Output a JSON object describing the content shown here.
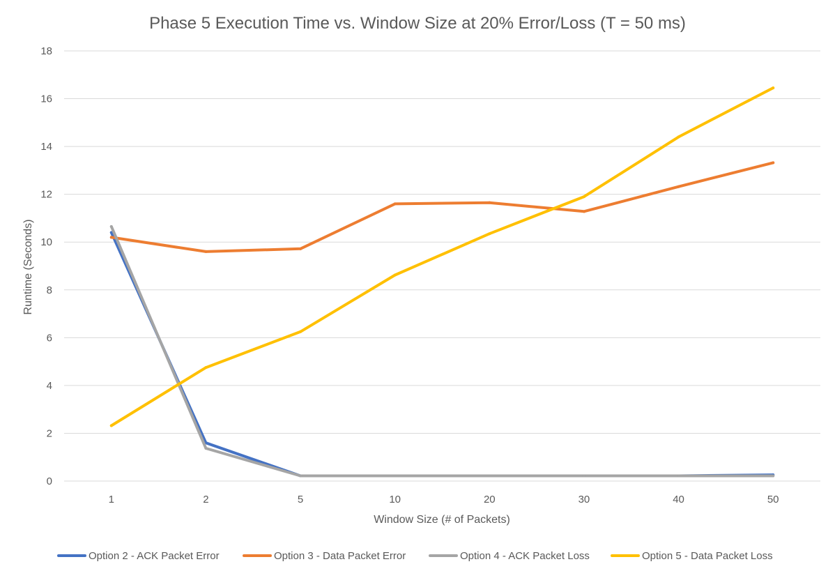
{
  "chart_data": {
    "type": "line",
    "title": "Phase 5 Execution Time vs. Window Size at 20% Error/Loss (T = 50 ms)",
    "xlabel": "Window Size (# of Packets)",
    "ylabel": "Runtime (Seconds)",
    "categories": [
      "1",
      "2",
      "5",
      "10",
      "20",
      "30",
      "40",
      "50"
    ],
    "ylim": [
      0,
      18
    ],
    "yticks": [
      "0",
      "2",
      "4",
      "6",
      "8",
      "10",
      "12",
      "14",
      "16",
      "18"
    ],
    "grid": true,
    "legend_position": "bottom",
    "series": [
      {
        "name": "Option 2 - ACK Packet Error",
        "color": "#4472C4",
        "values": [
          10.4,
          1.6,
          0.22,
          0.22,
          0.22,
          0.22,
          0.22,
          0.26
        ]
      },
      {
        "name": "Option 3 - Data Packet Error",
        "color": "#ED7D31",
        "values": [
          10.2,
          9.6,
          9.72,
          11.6,
          11.65,
          11.28,
          12.32,
          13.32
        ]
      },
      {
        "name": "Option 4 - ACK Packet Loss",
        "color": "#A5A5A5",
        "values": [
          10.65,
          1.37,
          0.22,
          0.22,
          0.22,
          0.22,
          0.22,
          0.22
        ]
      },
      {
        "name": "Option 5 - Data Packet Loss",
        "color": "#FFC000",
        "values": [
          2.32,
          4.75,
          6.25,
          8.62,
          10.35,
          11.9,
          14.4,
          16.45
        ]
      }
    ]
  }
}
